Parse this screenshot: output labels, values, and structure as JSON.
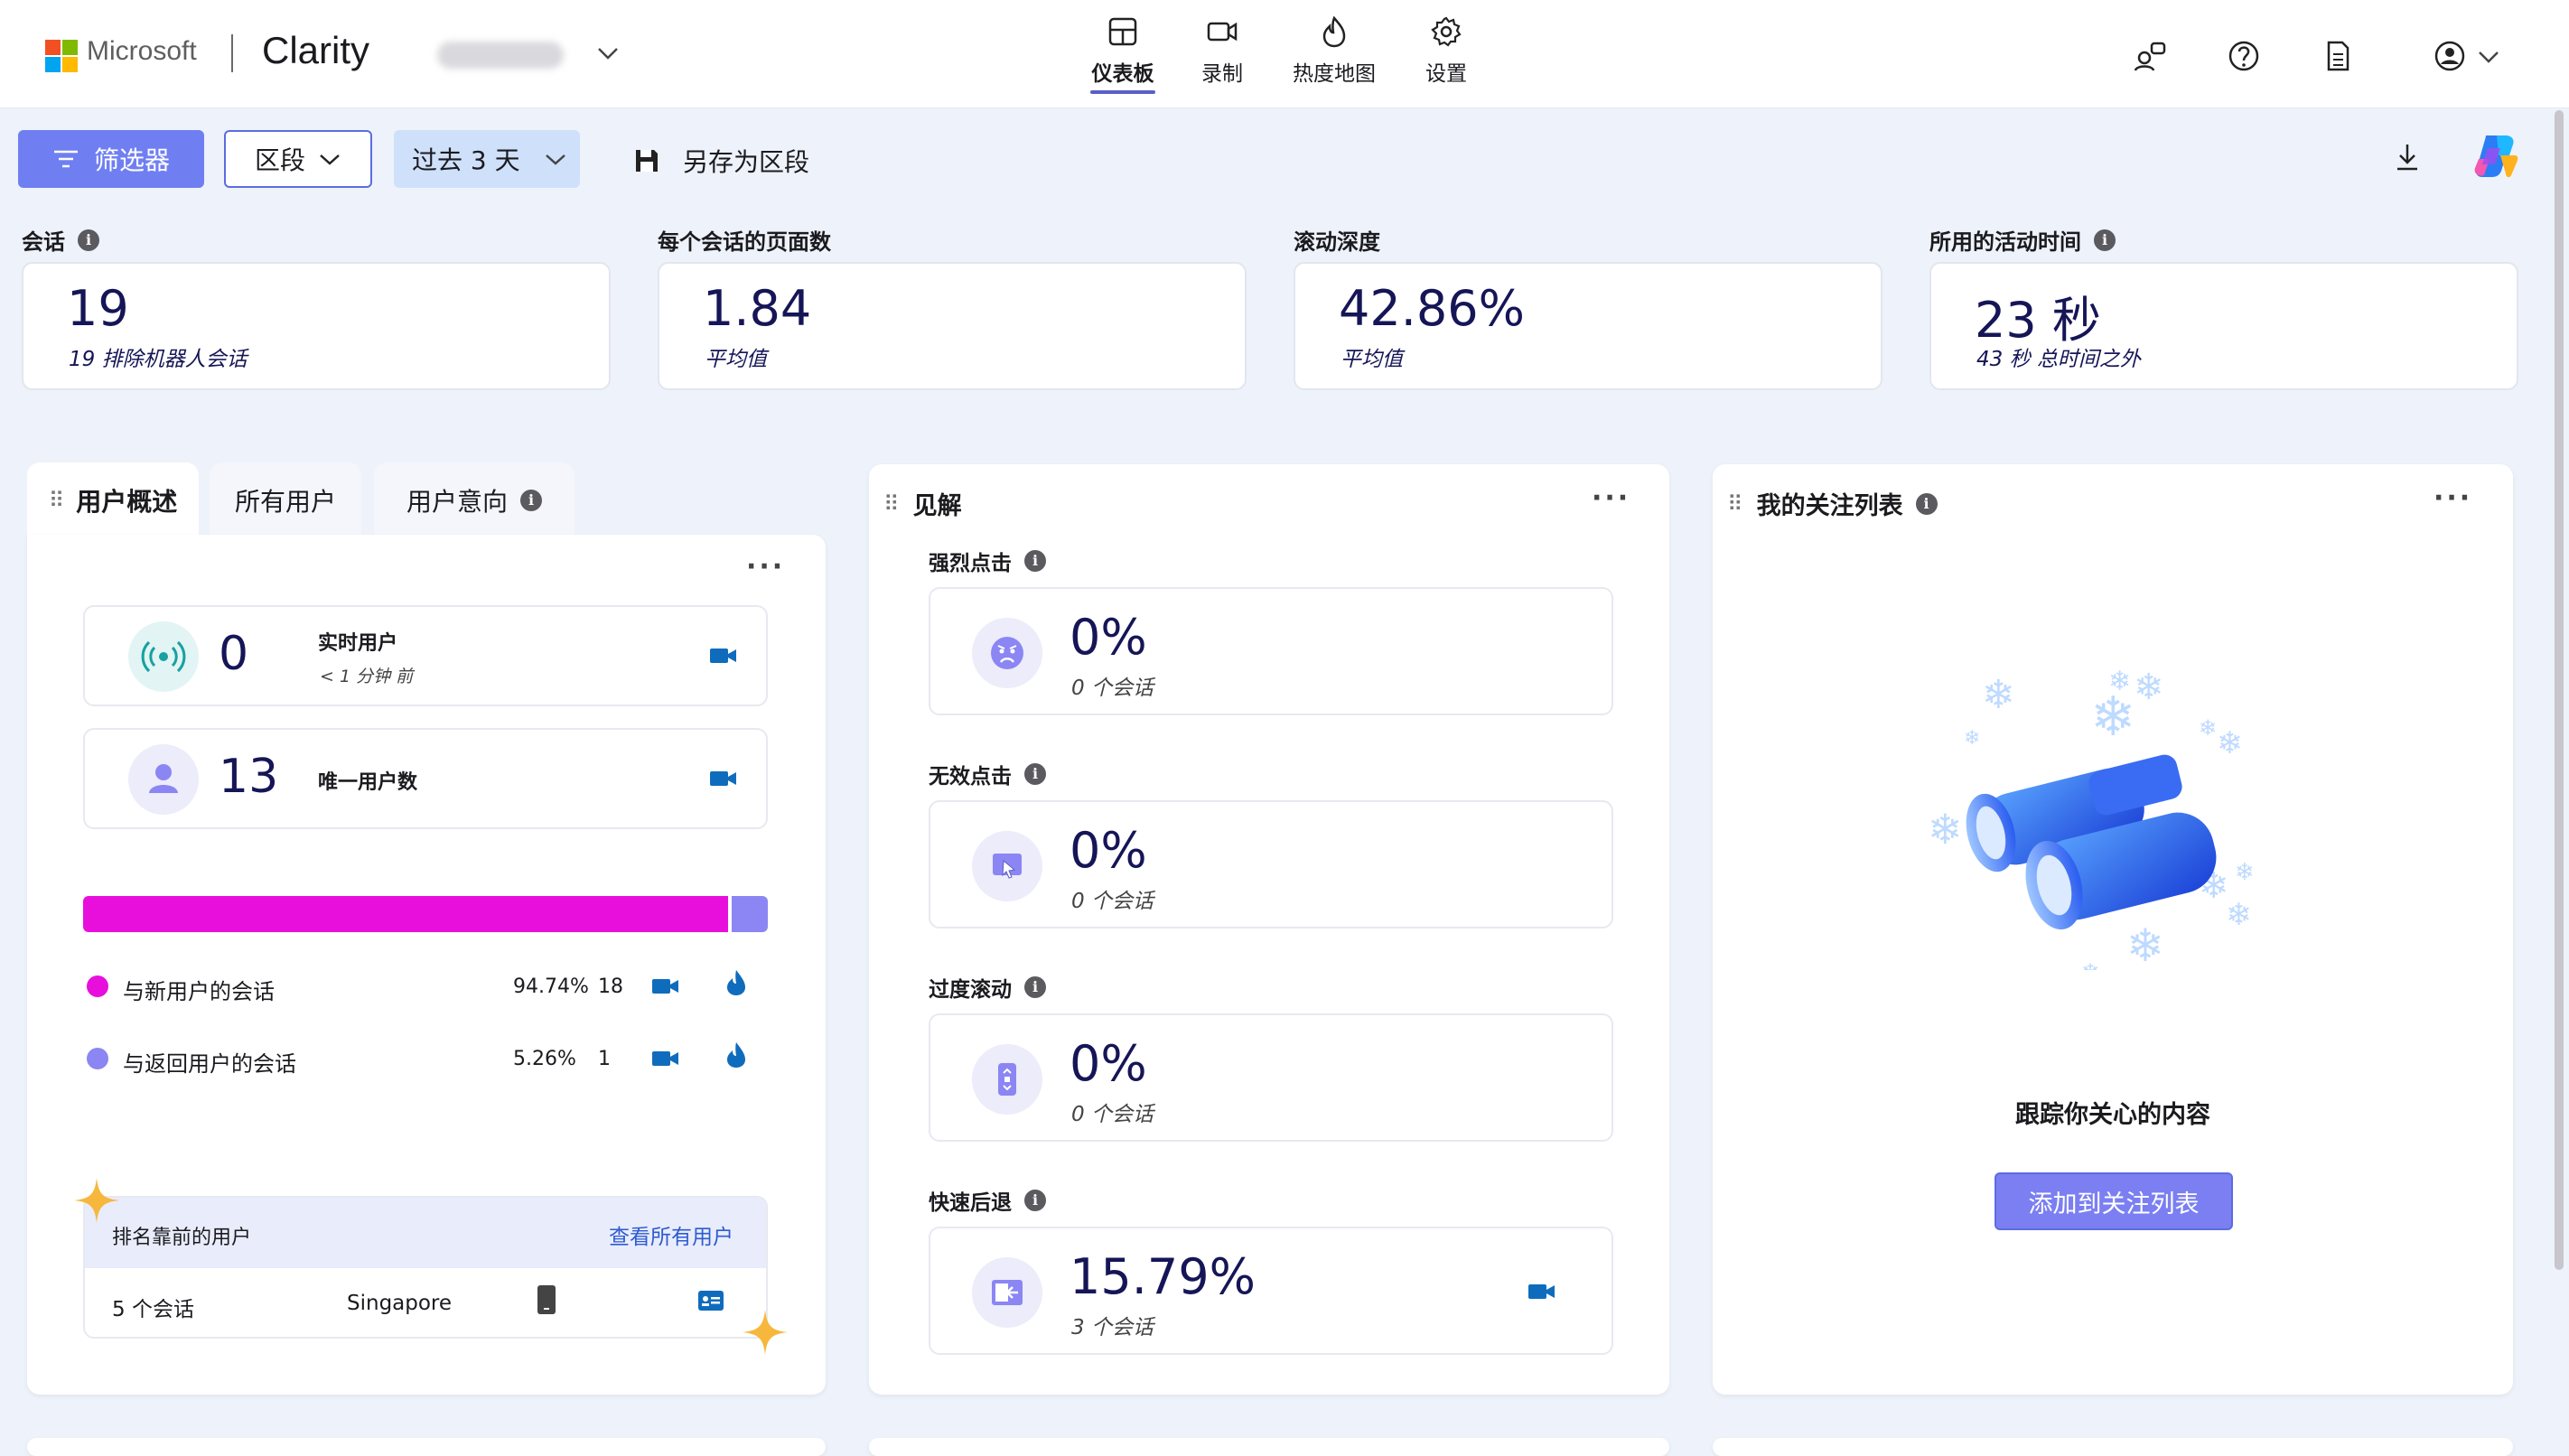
{
  "brand": {
    "ms_text": "Microsoft",
    "app_name": "Clarity"
  },
  "nav": {
    "dashboard": "仪表板",
    "recordings": "录制",
    "heatmaps": "热度地图",
    "settings": "设置"
  },
  "toolbar": {
    "filter": "筛选器",
    "segment": "区段",
    "date_range": "过去 3 天",
    "save_segment": "另存为区段"
  },
  "metrics": [
    {
      "label": "会话",
      "value": "19",
      "sub": "19 排除机器人会话",
      "info": true
    },
    {
      "label": "每个会话的页面数",
      "value": "1.84",
      "sub": "平均值",
      "info": false
    },
    {
      "label": "滚动深度",
      "value": "42.86%",
      "sub": "平均值",
      "info": false
    },
    {
      "label": "所用的活动时间",
      "value": "23 秒",
      "sub": "43 秒 总时间之外",
      "info": true
    }
  ],
  "user_panel": {
    "tabs": [
      "用户概述",
      "所有用户",
      "用户意向"
    ],
    "live": {
      "value": "0",
      "label": "实时用户",
      "sub": "< 1 分钟 前"
    },
    "unique": {
      "value": "13",
      "label": "唯一用户数"
    },
    "split": {
      "new_fraction": 0.9474
    },
    "legend": [
      {
        "label": "与新用户的会话",
        "pct": "94.74%",
        "count": "18",
        "color": "#e80fdc"
      },
      {
        "label": "与返回用户的会话",
        "pct": "5.26%",
        "count": "1",
        "color": "#8b86f3"
      }
    ],
    "top_users": {
      "title": "排名靠前的用户",
      "link": "查看所有用户",
      "row": {
        "sessions": "5 个会话",
        "location": "Singapore"
      }
    }
  },
  "insights": {
    "title": "见解",
    "items": [
      {
        "label": "强烈点击",
        "value": "0%",
        "sub": "0 个会话",
        "icon": "angry-face-icon"
      },
      {
        "label": "无效点击",
        "value": "0%",
        "sub": "0 个会话",
        "icon": "dead-click-icon"
      },
      {
        "label": "过度滚动",
        "value": "0%",
        "sub": "0 个会话",
        "icon": "scroll-icon"
      },
      {
        "label": "快速后退",
        "value": "15.79%",
        "sub": "3 个会话",
        "icon": "quick-back-icon"
      }
    ]
  },
  "watchlist": {
    "title": "我的关注列表",
    "caption": "跟踪你关心的内容",
    "button": "添加到关注列表"
  },
  "colors": {
    "accent": "#6f7ff2",
    "navy": "#151557",
    "magenta": "#e80fdc",
    "violet": "#8b86f3",
    "blue_icon": "#0f6cbd"
  }
}
